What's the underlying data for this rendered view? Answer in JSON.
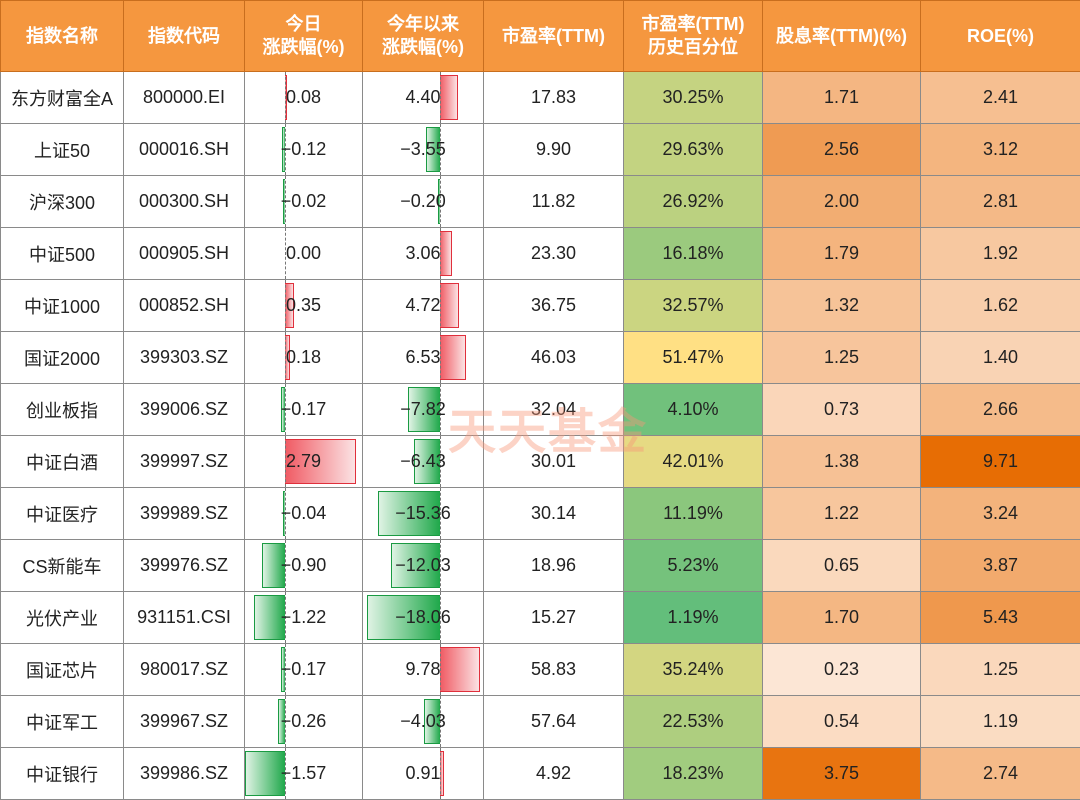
{
  "watermark": "天天基金",
  "chart_data": {
    "type": "table",
    "columns": [
      "指数名称",
      "指数代码",
      "今日\n涨跌幅(%)",
      "今年以来\n涨跌幅(%)",
      "市盈率(TTM)",
      "市盈率(TTM)\n历史百分位",
      "股息率(TTM)(%)",
      "ROE(%)"
    ],
    "rows": [
      {
        "name": "东方财富全A",
        "code": "800000.EI",
        "day": "0.08",
        "ytd": "4.40",
        "pe": "17.83",
        "pe_pct": "30.25%",
        "div": "1.71",
        "roe": "2.41"
      },
      {
        "name": "上证50",
        "code": "000016.SH",
        "day": "-0.12",
        "ytd": "-3.55",
        "pe": "9.90",
        "pe_pct": "29.63%",
        "div": "2.56",
        "roe": "3.12"
      },
      {
        "name": "沪深300",
        "code": "000300.SH",
        "day": "-0.02",
        "ytd": "-0.20",
        "pe": "11.82",
        "pe_pct": "26.92%",
        "div": "2.00",
        "roe": "2.81"
      },
      {
        "name": "中证500",
        "code": "000905.SH",
        "day": "0.00",
        "ytd": "3.06",
        "pe": "23.30",
        "pe_pct": "16.18%",
        "div": "1.79",
        "roe": "1.92"
      },
      {
        "name": "中证1000",
        "code": "000852.SH",
        "day": "0.35",
        "ytd": "4.72",
        "pe": "36.75",
        "pe_pct": "32.57%",
        "div": "1.32",
        "roe": "1.62"
      },
      {
        "name": "国证2000",
        "code": "399303.SZ",
        "day": "0.18",
        "ytd": "6.53",
        "pe": "46.03",
        "pe_pct": "51.47%",
        "div": "1.25",
        "roe": "1.40"
      },
      {
        "name": "创业板指",
        "code": "399006.SZ",
        "day": "-0.17",
        "ytd": "-7.82",
        "pe": "32.04",
        "pe_pct": "4.10%",
        "div": "0.73",
        "roe": "2.66"
      },
      {
        "name": "中证白酒",
        "code": "399997.SZ",
        "day": "2.79",
        "ytd": "-6.43",
        "pe": "30.01",
        "pe_pct": "42.01%",
        "div": "1.38",
        "roe": "9.71"
      },
      {
        "name": "中证医疗",
        "code": "399989.SZ",
        "day": "-0.04",
        "ytd": "-15.36",
        "pe": "30.14",
        "pe_pct": "11.19%",
        "div": "1.22",
        "roe": "3.24"
      },
      {
        "name": "CS新能车",
        "code": "399976.SZ",
        "day": "-0.90",
        "ytd": "-12.03",
        "pe": "18.96",
        "pe_pct": "5.23%",
        "div": "0.65",
        "roe": "3.87"
      },
      {
        "name": "光伏产业",
        "code": "931151.CSI",
        "day": "-1.22",
        "ytd": "-18.06",
        "pe": "15.27",
        "pe_pct": "1.19%",
        "div": "1.70",
        "roe": "5.43"
      },
      {
        "name": "国证芯片",
        "code": "980017.SZ",
        "day": "-0.17",
        "ytd": "9.78",
        "pe": "58.83",
        "pe_pct": "35.24%",
        "div": "0.23",
        "roe": "1.25"
      },
      {
        "name": "中证军工",
        "code": "399967.SZ",
        "day": "-0.26",
        "ytd": "-4.03",
        "pe": "57.64",
        "pe_pct": "22.53%",
        "div": "0.54",
        "roe": "1.19"
      },
      {
        "name": "中证银行",
        "code": "399986.SZ",
        "day": "-1.57",
        "ytd": "0.91",
        "pe": "4.92",
        "pe_pct": "18.23%",
        "div": "3.75",
        "roe": "2.74"
      }
    ],
    "colors": {
      "header_bg": "#f5973f",
      "header_text": "#ffffff",
      "positive_bar": "#f05a63",
      "negative_bar": "#1fa84a",
      "pe_pct_low": "#63be7b",
      "pe_pct_mid": "#ffe084",
      "scale_light": "#fdeadb",
      "scale_dark": "#e8720c"
    }
  }
}
